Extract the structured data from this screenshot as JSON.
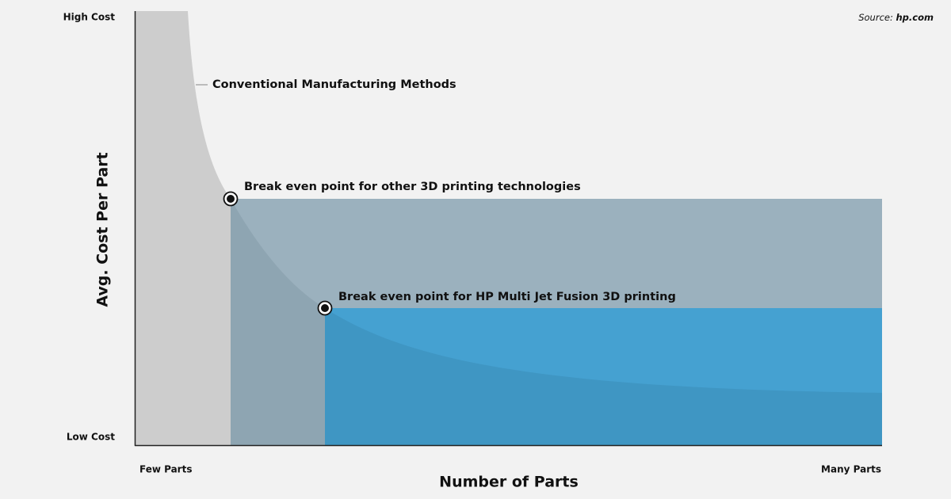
{
  "axis": {
    "y_label": "Avg. Cost Per Part",
    "y_top": "High Cost",
    "y_bottom": "Low Cost",
    "x_label": "Number of Parts",
    "x_left": "Few Parts",
    "x_right": "Many Parts"
  },
  "source": {
    "prefix": "Source:",
    "site": "hp.com"
  },
  "annotations": [
    "Conventional Manufacturing Methods",
    "Break even point for other 3D printing technologies",
    "Break even point for HP Multi Jet Fusion 3D printing"
  ]
}
